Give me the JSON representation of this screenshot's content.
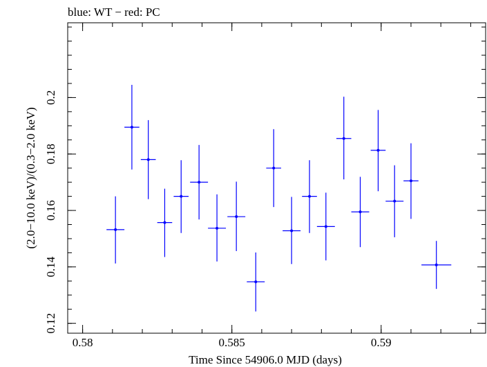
{
  "chart_data": {
    "type": "scatter",
    "title": "blue: WT − red: PC",
    "xlabel": "Time Since 54906.0 MJD (days)",
    "ylabel": "(2.0−10.0 keV)/(0.3−2.0 keV)",
    "xlim": [
      0.5795,
      0.5935
    ],
    "ylim": [
      0.1165,
      0.2265
    ],
    "xticks": [
      {
        "value": 0.58,
        "label": "0.58"
      },
      {
        "value": 0.585,
        "label": "0.585"
      },
      {
        "value": 0.59,
        "label": "0.59"
      }
    ],
    "yticks": [
      {
        "value": 0.12,
        "label": "0.12"
      },
      {
        "value": 0.14,
        "label": "0.14"
      },
      {
        "value": 0.16,
        "label": "0.16"
      },
      {
        "value": 0.18,
        "label": "0.18"
      },
      {
        "value": 0.2,
        "label": "0.2"
      }
    ],
    "x_minor_step": 0.001,
    "y_minor_step": 0.005,
    "grid": false,
    "series": [
      {
        "color": "#0000ff",
        "points": [
          {
            "x": 0.5811,
            "xerr": 0.0003,
            "y": 0.1532,
            "yerr_lo": 0.012,
            "yerr_hi": 0.0118
          },
          {
            "x": 0.58165,
            "xerr": 0.00025,
            "y": 0.1895,
            "yerr_lo": 0.015,
            "yerr_hi": 0.015
          },
          {
            "x": 0.5822,
            "xerr": 0.00025,
            "y": 0.178,
            "yerr_lo": 0.014,
            "yerr_hi": 0.014
          },
          {
            "x": 0.58275,
            "xerr": 0.00025,
            "y": 0.1557,
            "yerr_lo": 0.0122,
            "yerr_hi": 0.012
          },
          {
            "x": 0.5833,
            "xerr": 0.00025,
            "y": 0.165,
            "yerr_lo": 0.013,
            "yerr_hi": 0.0128
          },
          {
            "x": 0.5839,
            "xerr": 0.0003,
            "y": 0.17,
            "yerr_lo": 0.0132,
            "yerr_hi": 0.0132
          },
          {
            "x": 0.5845,
            "xerr": 0.0003,
            "y": 0.1537,
            "yerr_lo": 0.0118,
            "yerr_hi": 0.012
          },
          {
            "x": 0.58515,
            "xerr": 0.0003,
            "y": 0.1578,
            "yerr_lo": 0.0122,
            "yerr_hi": 0.0124
          },
          {
            "x": 0.5858,
            "xerr": 0.0003,
            "y": 0.1347,
            "yerr_lo": 0.0105,
            "yerr_hi": 0.0104
          },
          {
            "x": 0.5864,
            "xerr": 0.00025,
            "y": 0.175,
            "yerr_lo": 0.0138,
            "yerr_hi": 0.0138
          },
          {
            "x": 0.587,
            "xerr": 0.0003,
            "y": 0.1528,
            "yerr_lo": 0.0118,
            "yerr_hi": 0.012
          },
          {
            "x": 0.5876,
            "xerr": 0.00025,
            "y": 0.165,
            "yerr_lo": 0.013,
            "yerr_hi": 0.0128
          },
          {
            "x": 0.58815,
            "xerr": 0.0003,
            "y": 0.1543,
            "yerr_lo": 0.012,
            "yerr_hi": 0.012
          },
          {
            "x": 0.58875,
            "xerr": 0.00025,
            "y": 0.1855,
            "yerr_lo": 0.0145,
            "yerr_hi": 0.0148
          },
          {
            "x": 0.5893,
            "xerr": 0.0003,
            "y": 0.1595,
            "yerr_lo": 0.0125,
            "yerr_hi": 0.0124
          },
          {
            "x": 0.5899,
            "xerr": 0.00025,
            "y": 0.1813,
            "yerr_lo": 0.0145,
            "yerr_hi": 0.0143
          },
          {
            "x": 0.59045,
            "xerr": 0.0003,
            "y": 0.1633,
            "yerr_lo": 0.0128,
            "yerr_hi": 0.0127
          },
          {
            "x": 0.591,
            "xerr": 0.00025,
            "y": 0.1705,
            "yerr_lo": 0.0135,
            "yerr_hi": 0.0133
          },
          {
            "x": 0.59185,
            "xerr": 0.0005,
            "y": 0.1407,
            "yerr_lo": 0.0085,
            "yerr_hi": 0.0085
          }
        ]
      }
    ]
  }
}
